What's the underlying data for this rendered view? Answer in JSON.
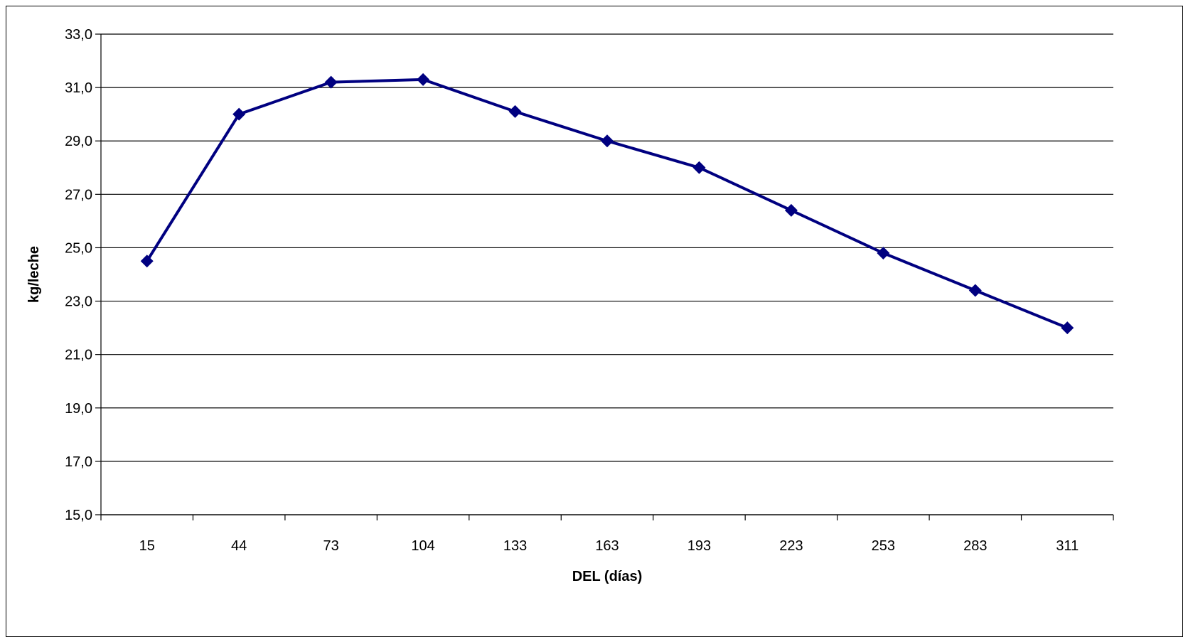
{
  "chart_data": {
    "type": "line",
    "title": "",
    "xlabel": "DEL (días)",
    "ylabel": "kg/leche",
    "categories": [
      "15",
      "44",
      "73",
      "104",
      "133",
      "163",
      "193",
      "223",
      "253",
      "283",
      "311"
    ],
    "series": [
      {
        "values": [
          24.5,
          30.0,
          31.2,
          31.3,
          30.1,
          29.0,
          28.0,
          26.4,
          24.8,
          23.4,
          22.0
        ]
      }
    ],
    "ylim": [
      15.0,
      33.0
    ],
    "yticks": [
      "15,0",
      "17,0",
      "19,0",
      "21,0",
      "23,0",
      "25,0",
      "27,0",
      "29,0",
      "31,0",
      "33,0"
    ],
    "grid": true,
    "legend": "none",
    "colors": {
      "series": "#000080",
      "grid": "#000000",
      "axis": "#000000"
    }
  }
}
